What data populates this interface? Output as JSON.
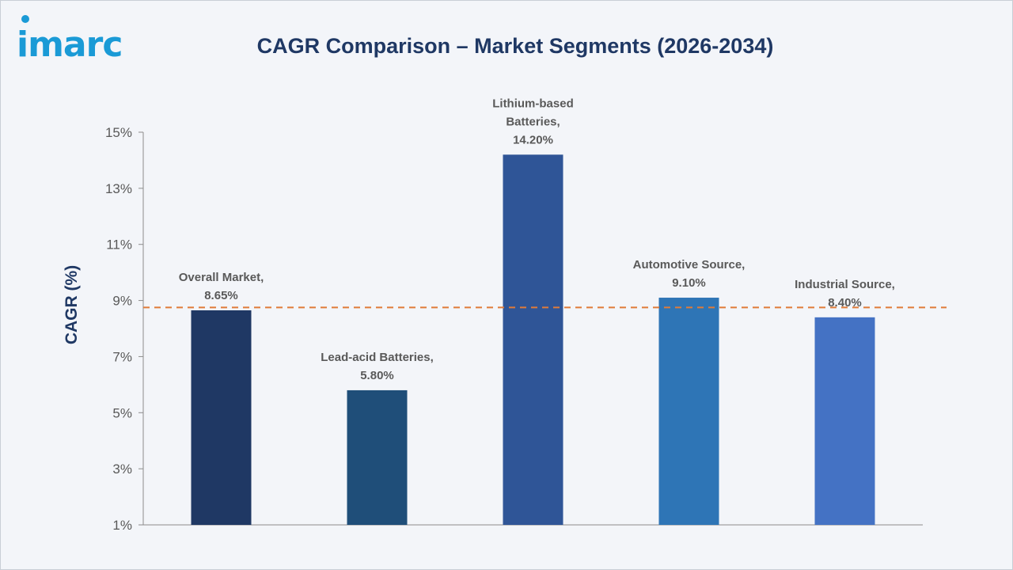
{
  "brand": {
    "logo_text": "imarc"
  },
  "chart_data": {
    "type": "bar",
    "title": "CAGR Comparison – Market Segments (2026-2034)",
    "xlabel": "",
    "ylabel": "CAGR (%)",
    "ylim": [
      1,
      15
    ],
    "yticks": [
      1,
      3,
      5,
      7,
      9,
      11,
      13,
      15
    ],
    "ytick_suffix": "%",
    "grid": false,
    "categories": [
      "Overall Market",
      "Lead-acid Batteries",
      "Lithium-based Batteries",
      "Automotive Source",
      "Industrial Source"
    ],
    "values": [
      8.65,
      5.8,
      14.2,
      9.1,
      8.4
    ],
    "data_labels": [
      [
        "Overall Market,",
        "8.65%"
      ],
      [
        "Lead-acid Batteries,",
        "5.80%"
      ],
      [
        "Lithium-based",
        "Batteries,",
        "14.20%"
      ],
      [
        "Automotive Source,",
        "9.10%"
      ],
      [
        "Industrial Source,",
        "8.40%"
      ]
    ],
    "bar_colors": [
      "#1f3864",
      "#1f4e79",
      "#2f5597",
      "#2e75b6",
      "#4472c4"
    ],
    "reference_line": {
      "value": 8.75,
      "style": "dashed",
      "color": "#e07b39"
    }
  }
}
